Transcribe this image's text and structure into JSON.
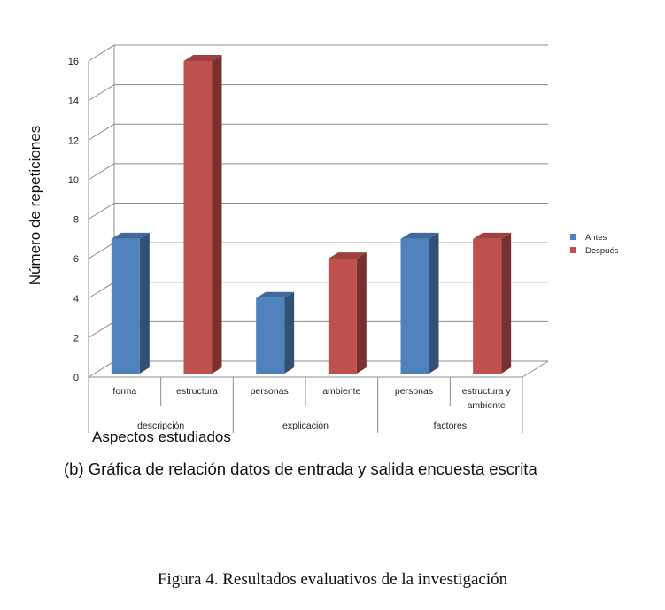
{
  "chart_data": {
    "type": "bar",
    "subtitle": "(b) Gráfica de relación datos de entrada y salida encuesta escrita",
    "xlabel": "Aspectos estudiados",
    "ylabel": "Número de repeticiones",
    "ylim": [
      0,
      16
    ],
    "yticks": [
      "0",
      "2",
      "4",
      "6",
      "8",
      "10",
      "12",
      "14",
      "16"
    ],
    "grid": true,
    "legend_position": "right",
    "categories": [
      {
        "label": "forma",
        "group": "descripción",
        "series": "Antes",
        "value": 7
      },
      {
        "label": "estructura",
        "group": "descripción",
        "series": "Después",
        "value": 16
      },
      {
        "label": "personas",
        "group": "explicación",
        "series": "Antes",
        "value": 4
      },
      {
        "label": "ambiente",
        "group": "explicación",
        "series": "Después",
        "value": 6
      },
      {
        "label": "personas",
        "group": "factores",
        "series": "Antes",
        "value": 7
      },
      {
        "label": "estructura y ambiente",
        "group": "factores",
        "series": "Después",
        "value": 7
      }
    ],
    "groups": [
      "descripción",
      "explicación",
      "factores"
    ],
    "series": [
      {
        "name": "Antes",
        "color": "#4F81BD"
      },
      {
        "name": "Después",
        "color": "#C0504D"
      }
    ]
  },
  "figure_caption": "Figura 4. Resultados evaluativos de la investigación"
}
